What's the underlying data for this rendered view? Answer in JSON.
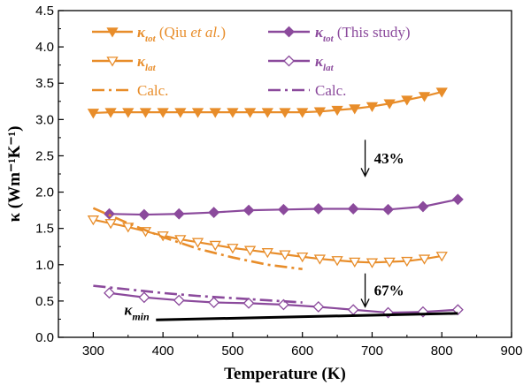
{
  "chart_data": {
    "type": "line",
    "xlabel": "Temperature (K)",
    "ylabel": "κ (Wm⁻¹K⁻¹)",
    "xlim": [
      250,
      900
    ],
    "ylim": [
      0.0,
      4.5
    ],
    "x_ticks": [
      300,
      400,
      500,
      600,
      700,
      800,
      900
    ],
    "y_ticks": [
      0.0,
      0.5,
      1.0,
      1.5,
      2.0,
      2.5,
      3.0,
      3.5,
      4.0,
      4.5
    ],
    "grid": false,
    "legend_position": "top",
    "colors": {
      "orange": "#E88D2A",
      "purple": "#8B4A9C",
      "black": "#000000"
    },
    "series": [
      {
        "name": "κ_tot (Qiu et al.)",
        "style": "orange-solid-filled-down-triangle",
        "x": [
          300,
          325,
          350,
          375,
          400,
          425,
          450,
          475,
          500,
          525,
          550,
          575,
          600,
          625,
          650,
          675,
          700,
          725,
          750,
          775,
          800
        ],
        "y": [
          3.09,
          3.1,
          3.1,
          3.1,
          3.1,
          3.1,
          3.1,
          3.1,
          3.1,
          3.1,
          3.1,
          3.1,
          3.1,
          3.11,
          3.13,
          3.15,
          3.18,
          3.22,
          3.27,
          3.32,
          3.38
        ]
      },
      {
        "name": "κ_tot (This study)",
        "style": "purple-solid-filled-diamond",
        "x": [
          323,
          373,
          423,
          473,
          523,
          573,
          623,
          673,
          723,
          773,
          823
        ],
        "y": [
          1.7,
          1.69,
          1.7,
          1.72,
          1.75,
          1.76,
          1.77,
          1.77,
          1.76,
          1.8,
          1.9
        ]
      },
      {
        "name": "κ_lat (Qiu et al.)",
        "style": "orange-solid-open-down-triangle",
        "x": [
          300,
          325,
          350,
          375,
          400,
          425,
          450,
          475,
          500,
          525,
          550,
          575,
          600,
          625,
          650,
          675,
          700,
          725,
          750,
          775,
          800
        ],
        "y": [
          1.62,
          1.57,
          1.52,
          1.46,
          1.4,
          1.35,
          1.31,
          1.27,
          1.23,
          1.2,
          1.17,
          1.14,
          1.11,
          1.08,
          1.06,
          1.04,
          1.03,
          1.04,
          1.05,
          1.08,
          1.12
        ]
      },
      {
        "name": "κ_lat (This study)",
        "style": "purple-solid-open-diamond",
        "x": [
          323,
          373,
          423,
          473,
          523,
          573,
          623,
          673,
          723,
          773,
          823
        ],
        "y": [
          0.61,
          0.55,
          0.51,
          0.48,
          0.47,
          0.45,
          0.42,
          0.38,
          0.34,
          0.35,
          0.38
        ]
      },
      {
        "name": "Calc. (Qiu et al.)",
        "style": "orange-dashdot",
        "x": [
          300,
          350,
          400,
          450,
          500,
          550,
          600
        ],
        "y": [
          1.78,
          1.57,
          1.38,
          1.22,
          1.1,
          1.0,
          0.94
        ]
      },
      {
        "name": "Calc. (This study)",
        "style": "purple-dashdot",
        "x": [
          300,
          350,
          400,
          450,
          500,
          550,
          600
        ],
        "y": [
          0.71,
          0.66,
          0.61,
          0.57,
          0.54,
          0.51,
          0.48
        ]
      },
      {
        "name": "κ_min",
        "style": "black-solid-thick",
        "x": [
          390,
          823
        ],
        "y": [
          0.24,
          0.33
        ]
      }
    ],
    "legend": [
      {
        "symbol": "κ",
        "sub": "tot",
        "label": " (Qiu ",
        "italic": "et al.",
        "tail": ")",
        "color": "#E88D2A",
        "marker": "tri-filled"
      },
      {
        "symbol": "κ",
        "sub": "tot",
        "label": " (This study)",
        "italic": "",
        "tail": "",
        "color": "#8B4A9C",
        "marker": "diamond-filled"
      },
      {
        "symbol": "κ",
        "sub": "lat",
        "label": "",
        "italic": "",
        "tail": "",
        "color": "#E88D2A",
        "marker": "tri-open"
      },
      {
        "symbol": "κ",
        "sub": "lat",
        "label": "",
        "italic": "",
        "tail": "",
        "color": "#8B4A9C",
        "marker": "diamond-open"
      },
      {
        "symbol": "",
        "sub": "",
        "label": "Calc.",
        "italic": "",
        "tail": "",
        "color": "#E88D2A",
        "marker": "dashdot"
      },
      {
        "symbol": "",
        "sub": "",
        "label": "Calc.",
        "italic": "",
        "tail": "",
        "color": "#8B4A9C",
        "marker": "dashdot"
      }
    ],
    "annotations": [
      {
        "text": "43%",
        "arrow_x": 690,
        "arrow_y_from": 2.72,
        "arrow_y_to": 2.22
      },
      {
        "text": "67%",
        "arrow_x": 690,
        "arrow_y_from": 0.88,
        "arrow_y_to": 0.42
      },
      {
        "text": "κ",
        "sub": "min",
        "x": 385,
        "y": 0.24
      }
    ]
  }
}
